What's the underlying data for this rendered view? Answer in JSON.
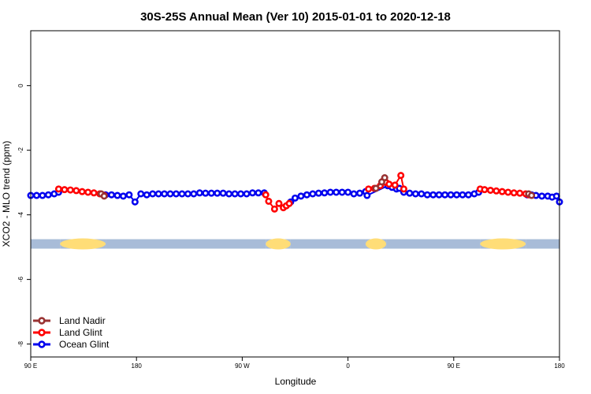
{
  "chart_data": {
    "type": "line",
    "title": "30S-25S Annual Mean (Ver 10)   2015-01-01 to 2020-12-18",
    "xlabel": "Longitude",
    "ylabel": "XCO2 - MLO trend (ppm)",
    "xlim": [
      0,
      360
    ],
    "ylim": [
      -8.4,
      1.7
    ],
    "x_ticks": [
      {
        "value": 0,
        "label": "90 E"
      },
      {
        "value": 72,
        "label": "180"
      },
      {
        "value": 144,
        "label": "90 W"
      },
      {
        "value": 216,
        "label": "0"
      },
      {
        "value": 288,
        "label": "90 E"
      },
      {
        "value": 360,
        "label": "180"
      }
    ],
    "y_ticks": [
      {
        "value": 0,
        "label": "0"
      },
      {
        "value": -2,
        "label": "-2"
      },
      {
        "value": -4,
        "label": "-4"
      },
      {
        "value": -6,
        "label": "-6"
      },
      {
        "value": -8,
        "label": "-8"
      }
    ],
    "grid": false,
    "legend": {
      "position": "bottom-left"
    },
    "colors": {
      "land_nadir": "#993333",
      "land_glint": "#ff0000",
      "ocean_glint": "#0000ee",
      "land_band": "#ffdd77",
      "ocean_band": "#a8bcd8"
    },
    "band": {
      "y": -4.9,
      "segments": [
        {
          "kind": "ocean",
          "x": [
            0,
            20
          ]
        },
        {
          "kind": "land",
          "x": [
            20,
            51
          ]
        },
        {
          "kind": "ocean",
          "x": [
            51,
            160
          ]
        },
        {
          "kind": "land",
          "x": [
            160,
            177
          ]
        },
        {
          "kind": "ocean",
          "x": [
            177,
            228
          ]
        },
        {
          "kind": "land",
          "x": [
            228,
            242
          ]
        },
        {
          "kind": "ocean",
          "x": [
            242,
            306
          ]
        },
        {
          "kind": "land",
          "x": [
            306,
            337
          ]
        },
        {
          "kind": "ocean",
          "x": [
            337,
            360
          ]
        }
      ]
    },
    "series": [
      {
        "name": "Land Nadir",
        "color": "#993333",
        "segments": [
          {
            "x": [
              48,
              50
            ],
            "y": [
              -3.35,
              -3.42
            ]
          },
          {
            "x": [
              235,
              239,
              241
            ],
            "y": [
              -3.18,
              -2.98,
              -2.85
            ]
          },
          {
            "x": [
              339,
              341
            ],
            "y": [
              -3.35,
              -3.4
            ]
          }
        ]
      },
      {
        "name": "Land Glint",
        "color": "#ff0000",
        "segments": [
          {
            "x": [
              19,
              23,
              27,
              31,
              35,
              39,
              43,
              47,
              50
            ],
            "y": [
              -3.2,
              -3.22,
              -3.23,
              -3.25,
              -3.28,
              -3.3,
              -3.32,
              -3.35,
              -3.4
            ]
          },
          {
            "x": [
              160,
              162,
              166,
              169,
              172,
              174,
              176
            ],
            "y": [
              -3.38,
              -3.58,
              -3.82,
              -3.65,
              -3.78,
              -3.72,
              -3.65
            ]
          },
          {
            "x": [
              230,
              234,
              238,
              240,
              242,
              244,
              248,
              252,
              254
            ],
            "y": [
              -3.2,
              -3.18,
              -3.1,
              -2.95,
              -3.0,
              -3.05,
              -3.08,
              -2.78,
              -3.2
            ]
          },
          {
            "x": [
              306,
              309,
              313,
              317,
              321,
              325,
              329,
              333,
              337,
              339
            ],
            "y": [
              -3.2,
              -3.22,
              -3.24,
              -3.26,
              -3.28,
              -3.3,
              -3.32,
              -3.33,
              -3.35,
              -3.38
            ]
          }
        ]
      },
      {
        "name": "Ocean Glint",
        "color": "#0000ee",
        "segments": [
          {
            "x": [
              0,
              4,
              8,
              12,
              16,
              19
            ],
            "y": [
              -3.4,
              -3.4,
              -3.4,
              -3.38,
              -3.35,
              -3.3
            ]
          },
          {
            "x": [
              51,
              55,
              59,
              63,
              67,
              71,
              75,
              79,
              83,
              87,
              91,
              95,
              99,
              103,
              107,
              111,
              115,
              119,
              123,
              127,
              131,
              135,
              139,
              143,
              147,
              151,
              155,
              159
            ],
            "y": [
              -3.38,
              -3.38,
              -3.4,
              -3.42,
              -3.38,
              -3.6,
              -3.35,
              -3.38,
              -3.35,
              -3.35,
              -3.35,
              -3.35,
              -3.35,
              -3.35,
              -3.35,
              -3.35,
              -3.32,
              -3.33,
              -3.33,
              -3.33,
              -3.33,
              -3.35,
              -3.35,
              -3.35,
              -3.35,
              -3.32,
              -3.32,
              -3.32
            ]
          },
          {
            "x": [
              177,
              180,
              184,
              188,
              192,
              196,
              200,
              204,
              208,
              212,
              216,
              220,
              224,
              228
            ],
            "y": [
              -3.6,
              -3.48,
              -3.42,
              -3.38,
              -3.35,
              -3.33,
              -3.32,
              -3.3,
              -3.3,
              -3.3,
              -3.3,
              -3.35,
              -3.33,
              -3.28
            ]
          },
          {
            "x": [
              229,
              243,
              246,
              249,
              251,
              254,
              258,
              262,
              266,
              270,
              274,
              278,
              282,
              286,
              290,
              294,
              298,
              302,
              305
            ],
            "y": [
              -3.4,
              -3.1,
              -3.15,
              -3.2,
              -3.18,
              -3.3,
              -3.33,
              -3.35,
              -3.35,
              -3.38,
              -3.38,
              -3.38,
              -3.38,
              -3.38,
              -3.38,
              -3.38,
              -3.38,
              -3.35,
              -3.3
            ]
          },
          {
            "x": [
              338,
              341,
              344,
              348,
              352,
              355,
              358,
              360
            ],
            "y": [
              -3.38,
              -3.38,
              -3.4,
              -3.42,
              -3.42,
              -3.45,
              -3.42,
              -3.6
            ]
          }
        ]
      }
    ]
  }
}
